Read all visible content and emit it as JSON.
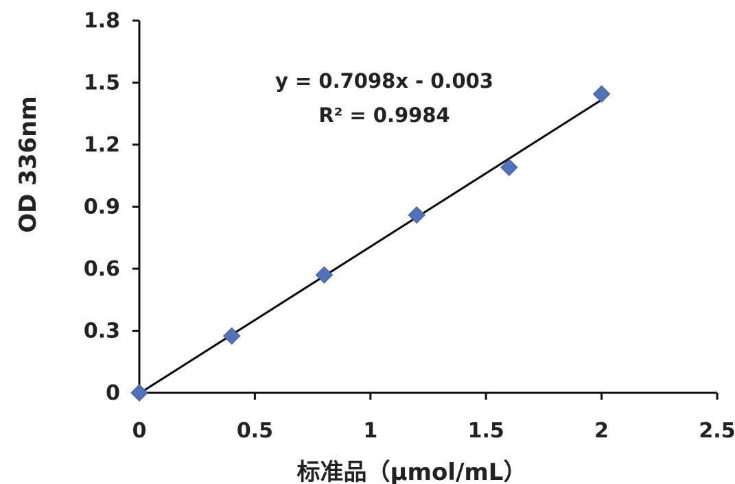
{
  "chart_data": {
    "type": "scatter",
    "title": "",
    "xlabel": "标准品（μmol/mL）",
    "ylabel": "OD 336nm",
    "xlim": [
      0,
      2.5
    ],
    "ylim": [
      0,
      1.8
    ],
    "xticks": [
      0,
      0.5,
      1,
      1.5,
      2,
      2.5
    ],
    "xtick_labels": [
      "0",
      "0.5",
      "1",
      "1.5",
      "2",
      "2.5"
    ],
    "yticks": [
      0,
      0.3,
      0.6,
      0.9,
      1.2,
      1.5,
      1.8
    ],
    "ytick_labels": [
      "0",
      "0.3",
      "0.6",
      "0.9",
      "1.2",
      "1.5",
      "1.8"
    ],
    "grid": false,
    "legend": "none",
    "series": [
      {
        "x": [
          0,
          0.4,
          0.8,
          1.2,
          1.6,
          2.0
        ],
        "y": [
          0,
          0.275,
          0.57,
          0.86,
          1.09,
          1.445
        ],
        "marker": "diamond",
        "color": "#4f72b8"
      }
    ],
    "trendline": {
      "type": "linear",
      "slope": 0.7098,
      "intercept": -0.003,
      "x_range": [
        0,
        2.0
      ],
      "color": "#000000",
      "equation_text": "y = 0.7098x - 0.003",
      "r2_text": "R² = 0.9984"
    }
  }
}
